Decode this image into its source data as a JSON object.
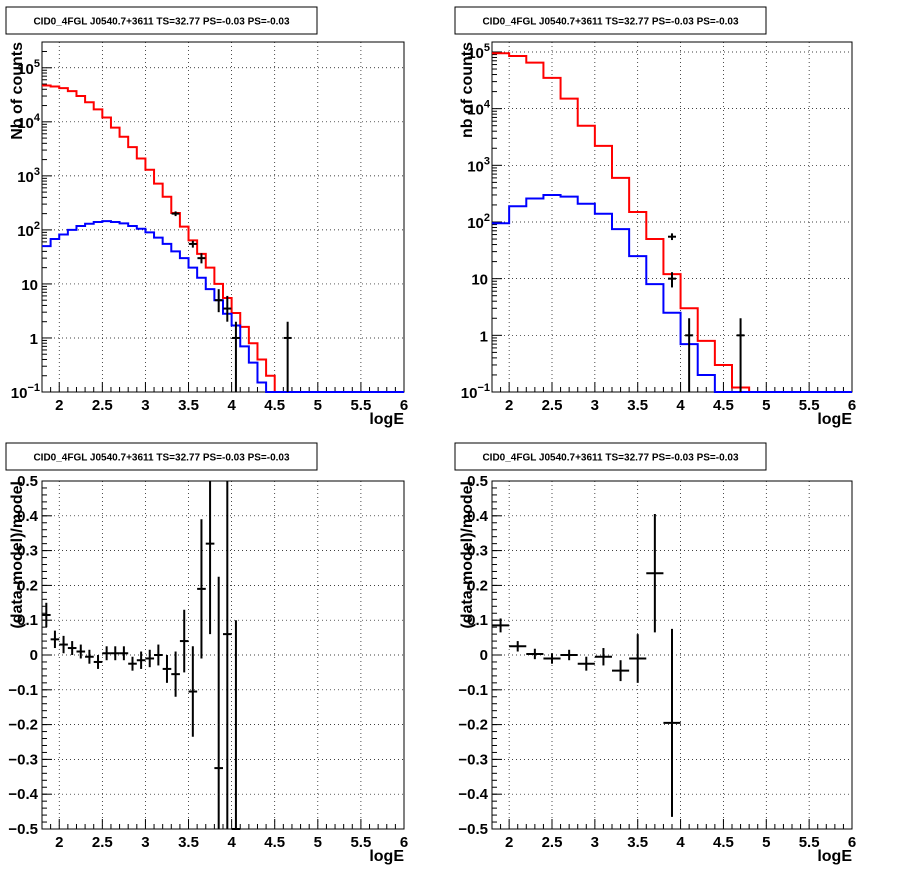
{
  "chart_data": [
    {
      "type": "histogram",
      "title": "CID0_4FGL J0540.7+3611 TS=32.77 PS=-0.03 PS=-0.03",
      "xlabel": "logE",
      "ylabel": "Nb of counts",
      "xlim": [
        1.8,
        6.0
      ],
      "ylim": [
        0.1,
        300000
      ],
      "yscale": "log",
      "grid": true,
      "x_ticks": [
        "2",
        "2.5",
        "3",
        "3.5",
        "4",
        "4.5",
        "5",
        "5.5",
        "6"
      ],
      "y_ticks": [
        {
          "value": 0.1,
          "mantissa": "10",
          "exp": "−1"
        },
        {
          "value": 1,
          "mantissa": "1",
          "exp": ""
        },
        {
          "value": 10,
          "mantissa": "10",
          "exp": ""
        },
        {
          "value": 100,
          "mantissa": "10",
          "exp": "2"
        },
        {
          "value": 1000,
          "mantissa": "10",
          "exp": "3"
        },
        {
          "value": 10000,
          "mantissa": "10",
          "exp": "4"
        },
        {
          "value": 100000,
          "mantissa": "10",
          "exp": "5"
        }
      ],
      "bins": [
        1.8,
        1.9,
        2.0,
        2.1,
        2.2,
        2.3,
        2.4,
        2.5,
        2.6,
        2.7,
        2.8,
        2.9,
        3.0,
        3.1,
        3.2,
        3.3,
        3.4,
        3.5,
        3.6,
        3.7,
        3.8,
        3.9,
        4.0,
        4.1,
        4.2,
        4.3,
        4.4,
        4.5,
        4.6,
        4.7,
        4.8,
        4.9,
        5.0,
        5.1,
        5.2,
        5.3,
        5.4,
        5.5,
        5.6,
        5.7,
        5.8,
        5.9,
        6.0
      ],
      "series": [
        {
          "color": "#ff0000",
          "values": [
            47000,
            45000,
            42000,
            37000,
            30000,
            23000,
            17000,
            12000,
            7800,
            5300,
            3400,
            2100,
            1300,
            720,
            410,
            205,
            115,
            64,
            36,
            20,
            10,
            5.5,
            2.9,
            1.6,
            0.8,
            0.4,
            0.2,
            0.1,
            0.1,
            0.1,
            0.1,
            0.1,
            0.1,
            0.1,
            0.1,
            0.1,
            0.1,
            0.1,
            0.1,
            0.1,
            0.1,
            0.1
          ]
        },
        {
          "color": "#0000ff",
          "values": [
            50,
            68,
            82,
            100,
            118,
            130,
            140,
            145,
            140,
            132,
            118,
            105,
            90,
            72,
            55,
            40,
            30,
            20,
            13,
            8,
            5,
            2.8,
            1.7,
            0.7,
            0.35,
            0.15,
            0.1,
            0.1,
            0.1,
            0.1,
            0.1,
            0.1,
            0.1,
            0.1,
            0.1,
            0.1,
            0.1,
            0.1,
            0.1,
            0.1,
            0.1,
            0.1
          ]
        }
      ],
      "data_points": [
        {
          "x": 3.35,
          "y": 200,
          "lo": 180,
          "hi": 220
        },
        {
          "x": 3.55,
          "y": 55,
          "lo": 47,
          "hi": 63
        },
        {
          "x": 3.65,
          "y": 30,
          "lo": 24,
          "hi": 37
        },
        {
          "x": 3.85,
          "y": 5,
          "lo": 3,
          "hi": 8
        },
        {
          "x": 3.95,
          "y": 3.5,
          "lo": 2,
          "hi": 6
        },
        {
          "x": 4.05,
          "y": 1,
          "lo": 0.1,
          "hi": 2
        },
        {
          "x": 4.65,
          "y": 1,
          "lo": 0.1,
          "hi": 2
        }
      ]
    },
    {
      "type": "histogram",
      "title": "CID0_4FGL J0540.7+3611 TS=32.77 PS=-0.03 PS=-0.03",
      "xlabel": "logE",
      "ylabel": "nb of counts",
      "xlim": [
        1.8,
        6.0
      ],
      "ylim": [
        0.1,
        150000
      ],
      "yscale": "log",
      "grid": true,
      "x_ticks": [
        "2",
        "2.5",
        "3",
        "3.5",
        "4",
        "4.5",
        "5",
        "5.5",
        "6"
      ],
      "y_ticks": [
        {
          "value": 0.1,
          "mantissa": "10",
          "exp": "−1"
        },
        {
          "value": 1,
          "mantissa": "1",
          "exp": ""
        },
        {
          "value": 10,
          "mantissa": "10",
          "exp": ""
        },
        {
          "value": 100,
          "mantissa": "10",
          "exp": "2"
        },
        {
          "value": 1000,
          "mantissa": "10",
          "exp": "3"
        },
        {
          "value": 10000,
          "mantissa": "10",
          "exp": "4"
        },
        {
          "value": 100000,
          "mantissa": "10",
          "exp": "5"
        }
      ],
      "bins": [
        1.8,
        2.0,
        2.2,
        2.4,
        2.6,
        2.8,
        3.0,
        3.2,
        3.4,
        3.6,
        3.8,
        4.0,
        4.2,
        4.4,
        4.6,
        4.8,
        5.0,
        5.2,
        5.4,
        5.6,
        5.8,
        6.0
      ],
      "series": [
        {
          "color": "#ff0000",
          "values": [
            95000,
            85000,
            65000,
            35000,
            15000,
            5000,
            2200,
            600,
            150,
            50,
            12,
            3,
            0.8,
            0.3,
            0.12,
            0.1,
            0.1,
            0.1,
            0.1,
            0.1,
            0.1
          ]
        },
        {
          "color": "#0000ff",
          "values": [
            95,
            190,
            260,
            300,
            280,
            210,
            140,
            75,
            25,
            8,
            2.5,
            0.7,
            0.2,
            0.1,
            0.1,
            0.1,
            0.1,
            0.1,
            0.1,
            0.1,
            0.1
          ]
        }
      ],
      "data_points": [
        {
          "x": 3.9,
          "y": 55,
          "lo": 48,
          "hi": 63
        },
        {
          "x": 3.9,
          "y": 10,
          "lo": 7,
          "hi": 13
        },
        {
          "x": 4.1,
          "y": 1,
          "lo": 0.1,
          "hi": 2
        },
        {
          "x": 4.7,
          "y": 1,
          "lo": 0.1,
          "hi": 2
        }
      ]
    },
    {
      "type": "scatter",
      "title": "CID0_4FGL J0540.7+3611 TS=32.77 PS=-0.03 PS=-0.03",
      "xlabel": "logE",
      "ylabel": "(data-model)/model",
      "xlim": [
        1.8,
        6.0
      ],
      "ylim": [
        -0.5,
        0.5
      ],
      "grid": true,
      "x_ticks": [
        "2",
        "2.5",
        "3",
        "3.5",
        "4",
        "4.5",
        "5",
        "5.5",
        "6"
      ],
      "y_ticks": [
        "0.5",
        "0.4",
        "0.3",
        "0.2",
        "0.1",
        "0",
        "−0.1",
        "−0.2",
        "−0.3",
        "−0.4",
        "−0.5"
      ],
      "y_tick_values": [
        0.5,
        0.4,
        0.3,
        0.2,
        0.1,
        0,
        -0.1,
        -0.2,
        -0.3,
        -0.4,
        -0.5
      ],
      "xerr": 0.05,
      "points": [
        {
          "x": 1.85,
          "y": 0.115,
          "err": 0.035
        },
        {
          "x": 1.95,
          "y": 0.045,
          "err": 0.025
        },
        {
          "x": 2.05,
          "y": 0.03,
          "err": 0.025
        },
        {
          "x": 2.15,
          "y": 0.02,
          "err": 0.02
        },
        {
          "x": 2.25,
          "y": 0.01,
          "err": 0.02
        },
        {
          "x": 2.35,
          "y": -0.005,
          "err": 0.02
        },
        {
          "x": 2.45,
          "y": -0.02,
          "err": 0.02
        },
        {
          "x": 2.55,
          "y": 0.005,
          "err": 0.02
        },
        {
          "x": 2.65,
          "y": 0.005,
          "err": 0.02
        },
        {
          "x": 2.75,
          "y": 0.005,
          "err": 0.02
        },
        {
          "x": 2.85,
          "y": -0.025,
          "err": 0.02
        },
        {
          "x": 2.95,
          "y": -0.015,
          "err": 0.025
        },
        {
          "x": 3.05,
          "y": -0.01,
          "err": 0.025
        },
        {
          "x": 3.15,
          "y": 0.0,
          "err": 0.03
        },
        {
          "x": 3.25,
          "y": -0.04,
          "err": 0.04
        },
        {
          "x": 3.35,
          "y": -0.055,
          "err": 0.065
        },
        {
          "x": 3.45,
          "y": 0.04,
          "err": 0.09
        },
        {
          "x": 3.55,
          "y": -0.105,
          "err": 0.13
        },
        {
          "x": 3.65,
          "y": 0.19,
          "err": 0.2
        },
        {
          "x": 3.75,
          "y": 0.32,
          "err": 0.26
        },
        {
          "x": 3.85,
          "y": -0.325,
          "err": 0.55
        },
        {
          "x": 3.95,
          "y": 0.06,
          "err": 0.6
        },
        {
          "x": 4.05,
          "y": -0.5,
          "err": 0.6
        }
      ]
    },
    {
      "type": "scatter",
      "title": "CID0_4FGL J0540.7+3611 TS=32.77 PS=-0.03 PS=-0.03",
      "xlabel": "logE",
      "ylabel": "(data-model)/model",
      "xlim": [
        1.8,
        6.0
      ],
      "ylim": [
        -0.5,
        0.5
      ],
      "grid": true,
      "x_ticks": [
        "2",
        "2.5",
        "3",
        "3.5",
        "4",
        "4.5",
        "5",
        "5.5",
        "6"
      ],
      "y_ticks": [
        "0.5",
        "0.4",
        "0.3",
        "0.2",
        "0.1",
        "0",
        "−0.1",
        "−0.2",
        "−0.3",
        "−0.4",
        "−0.5"
      ],
      "y_tick_values": [
        0.5,
        0.4,
        0.3,
        0.2,
        0.1,
        0,
        -0.1,
        -0.2,
        -0.3,
        -0.4,
        -0.5
      ],
      "xerr": 0.1,
      "points": [
        {
          "x": 1.9,
          "y": 0.085,
          "err": 0.02
        },
        {
          "x": 2.1,
          "y": 0.025,
          "err": 0.015
        },
        {
          "x": 2.3,
          "y": 0.003,
          "err": 0.015
        },
        {
          "x": 2.5,
          "y": -0.01,
          "err": 0.015
        },
        {
          "x": 2.7,
          "y": 0.0,
          "err": 0.015
        },
        {
          "x": 2.9,
          "y": -0.025,
          "err": 0.02
        },
        {
          "x": 3.1,
          "y": -0.005,
          "err": 0.025
        },
        {
          "x": 3.3,
          "y": -0.045,
          "err": 0.03
        },
        {
          "x": 3.5,
          "y": -0.01,
          "err": 0.07
        },
        {
          "x": 3.7,
          "y": 0.235,
          "err": 0.17
        },
        {
          "x": 3.9,
          "y": -0.195,
          "err": 0.27
        }
      ]
    }
  ]
}
